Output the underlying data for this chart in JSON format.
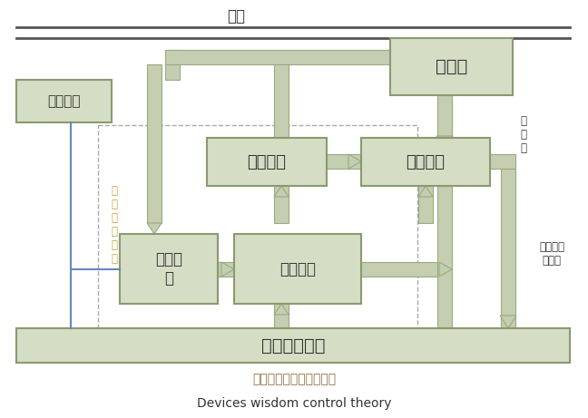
{
  "fig_width": 6.48,
  "fig_height": 4.61,
  "dpi": 100,
  "bg_color": "#ffffff",
  "box_fill": "#d6ddc5",
  "box_edge": "#8a9a70",
  "pipe_color": "#c5ceb0",
  "pipe_edge": "#9aaa80",
  "blue_line_color": "#6688bb",
  "grid_line_color": "#555555",
  "title_cn": "断路器智能控制工作原理",
  "title_en": "Devices wisdom control theory",
  "title_cn_color": "#8b7040",
  "title_en_color": "#333333",
  "label_diangwang": "电网",
  "label_shujubianhuan": "数据变换",
  "label_miehumshi": "灭弧室",
  "label_duanluqi": "断\n路\n器",
  "label_tiaojie": "调节装置",
  "label_caodong": "操动机构",
  "label_shujucaiyang": "数据采\n样",
  "label_zhinengshibie": "智能识别",
  "label_zhinen_kongzhi": "智\n能\n控\n制\n单\n元",
  "label_biandian": "变电站主控室",
  "label_fenjian": "分间／合\n间信号"
}
